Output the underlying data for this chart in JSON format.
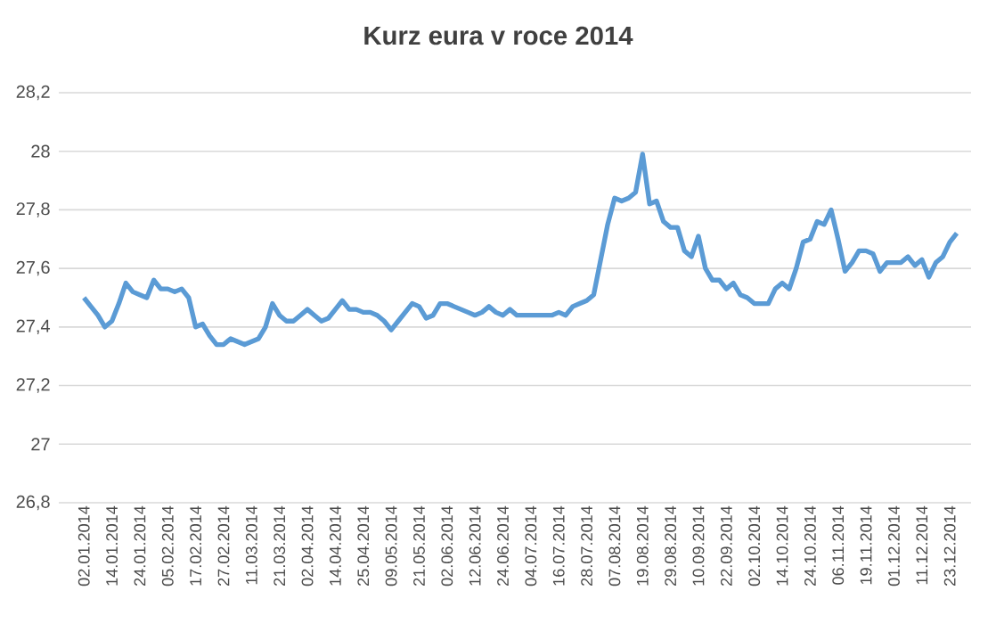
{
  "chart_data": {
    "type": "line",
    "title": "Kurz eura v roce 2014",
    "categories": [
      "02.01.2014",
      null,
      null,
      null,
      "14.01.2014",
      null,
      null,
      null,
      "24.01.2014",
      null,
      null,
      null,
      "05.02.2014",
      null,
      null,
      null,
      "17.02.2014",
      null,
      null,
      null,
      "27.02.2014",
      null,
      null,
      null,
      "11.03.2014",
      null,
      null,
      null,
      "21.03.2014",
      null,
      null,
      null,
      "02.04.2014",
      null,
      null,
      null,
      "14.04.2014",
      null,
      null,
      null,
      "25.04.2014",
      null,
      null,
      null,
      "09.05.2014",
      null,
      null,
      null,
      "21.05.2014",
      null,
      null,
      null,
      "02.06.2014",
      null,
      null,
      null,
      "12.06.2014",
      null,
      null,
      null,
      "24.06.2014",
      null,
      null,
      null,
      "04.07.2014",
      null,
      null,
      null,
      "16.07.2014",
      null,
      null,
      null,
      "28.07.2014",
      null,
      null,
      null,
      "07.08.2014",
      null,
      null,
      null,
      "19.08.2014",
      null,
      null,
      null,
      "29.08.2014",
      null,
      null,
      null,
      "10.09.2014",
      null,
      null,
      null,
      "22.09.2014",
      null,
      null,
      null,
      "02.10.2014",
      null,
      null,
      null,
      "14.10.2014",
      null,
      null,
      null,
      "24.10.2014",
      null,
      null,
      null,
      "06.11.2014",
      null,
      null,
      null,
      "19.11.2014",
      null,
      null,
      null,
      "01.12.2014",
      null,
      null,
      null,
      "11.12.2014",
      null,
      null,
      null,
      "23.12.2014",
      null
    ],
    "series": [
      {
        "color": "#5b9bd5",
        "values": [
          27.5,
          27.47,
          27.44,
          27.4,
          27.42,
          27.48,
          27.55,
          27.52,
          27.51,
          27.5,
          27.56,
          27.53,
          27.53,
          27.52,
          27.53,
          27.5,
          27.4,
          27.41,
          27.37,
          27.34,
          27.34,
          27.36,
          27.35,
          27.34,
          27.35,
          27.36,
          27.4,
          27.48,
          27.44,
          27.42,
          27.42,
          27.44,
          27.46,
          27.44,
          27.42,
          27.43,
          27.46,
          27.49,
          27.46,
          27.46,
          27.45,
          27.45,
          27.44,
          27.42,
          27.39,
          27.42,
          27.45,
          27.48,
          27.47,
          27.43,
          27.44,
          27.48,
          27.48,
          27.47,
          27.46,
          27.45,
          27.44,
          27.45,
          27.47,
          27.45,
          27.44,
          27.46,
          27.44,
          27.44,
          27.44,
          27.44,
          27.44,
          27.44,
          27.45,
          27.44,
          27.47,
          27.48,
          27.49,
          27.51,
          27.63,
          27.75,
          27.84,
          27.83,
          27.84,
          27.86,
          27.99,
          27.82,
          27.83,
          27.76,
          27.74,
          27.74,
          27.66,
          27.64,
          27.71,
          27.6,
          27.56,
          27.56,
          27.53,
          27.55,
          27.51,
          27.5,
          27.48,
          27.48,
          27.48,
          27.53,
          27.55,
          27.53,
          27.6,
          27.69,
          27.7,
          27.76,
          27.75,
          27.8,
          27.7,
          27.59,
          27.62,
          27.66,
          27.66,
          27.65,
          27.59,
          27.62,
          27.62,
          27.62,
          27.64,
          27.61,
          27.63,
          27.57,
          27.62,
          27.64,
          27.69,
          27.72
        ]
      }
    ],
    "ylim": [
      26.8,
      28.2
    ],
    "yticks": [
      {
        "value": 26.8,
        "label": "26,8"
      },
      27,
      {
        "value": 27.2,
        "label": "27,2"
      },
      {
        "value": 27.4,
        "label": "27,4"
      },
      {
        "value": 27.6,
        "label": "27,6"
      },
      {
        "value": 27.8,
        "label": "27,8"
      },
      28,
      {
        "value": 28.2,
        "label": "28,2"
      }
    ],
    "grid": "y"
  }
}
